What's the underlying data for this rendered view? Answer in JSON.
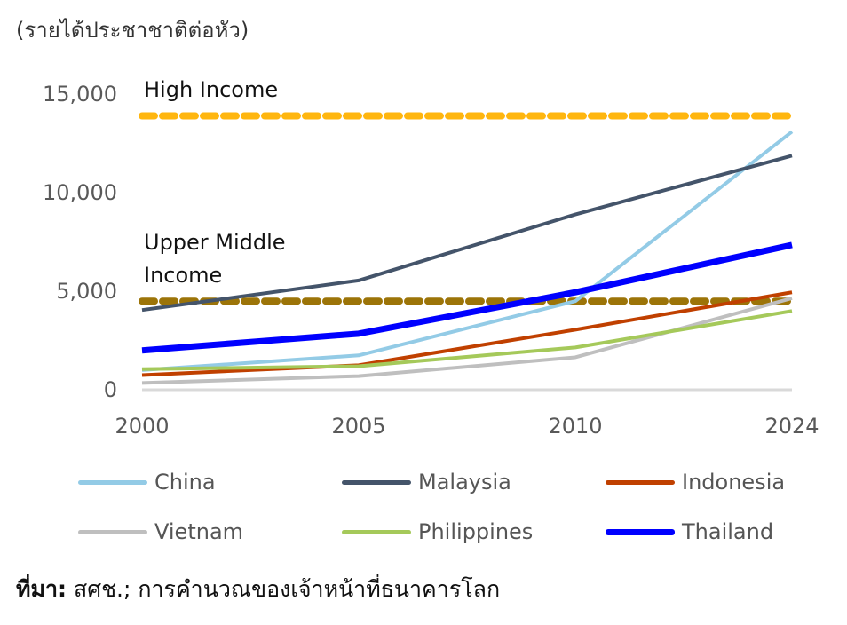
{
  "chart_data": {
    "type": "line",
    "ylabel": "(รายได้ประชาชาติต่อหัว)",
    "categories": [
      "2000",
      "2005",
      "2010",
      "2024"
    ],
    "ylim": [
      0,
      15000
    ],
    "yticks": [
      "0",
      "5,000",
      "10,000",
      "15,000"
    ],
    "ytick_values": [
      0,
      5000,
      10000,
      15000
    ],
    "series": [
      {
        "name": "China",
        "color": "#93cbe6",
        "width": 4,
        "values": [
          950,
          1700,
          4450,
          13050
        ]
      },
      {
        "name": "Malaysia",
        "color": "#44546a",
        "width": 4,
        "values": [
          4000,
          5500,
          8850,
          11830
        ]
      },
      {
        "name": "Indonesia",
        "color": "#c04000",
        "width": 4,
        "values": [
          700,
          1200,
          3000,
          4900
        ]
      },
      {
        "name": "Vietnam",
        "color": "#bfbfbf",
        "width": 4,
        "values": [
          300,
          650,
          1600,
          4600
        ]
      },
      {
        "name": "Philippines",
        "color": "#a5c95a",
        "width": 4,
        "values": [
          1000,
          1150,
          2100,
          3950
        ]
      },
      {
        "name": "Thailand",
        "color": "#0000ff",
        "width": 7,
        "values": [
          1950,
          2800,
          4900,
          7300
        ]
      }
    ],
    "thresholds": [
      {
        "label": "High Income",
        "value": 13850,
        "color": "#ffb60f"
      },
      {
        "label_lines": [
          "Upper Middle",
          "Income"
        ],
        "value": 4450,
        "color": "#9c7408"
      }
    ],
    "legend_position": "bottom"
  },
  "source": {
    "label": "ที่มา:",
    "text": " สศช.; การคำนวณของเจ้าหน้าที่ธนาคารโลก"
  }
}
